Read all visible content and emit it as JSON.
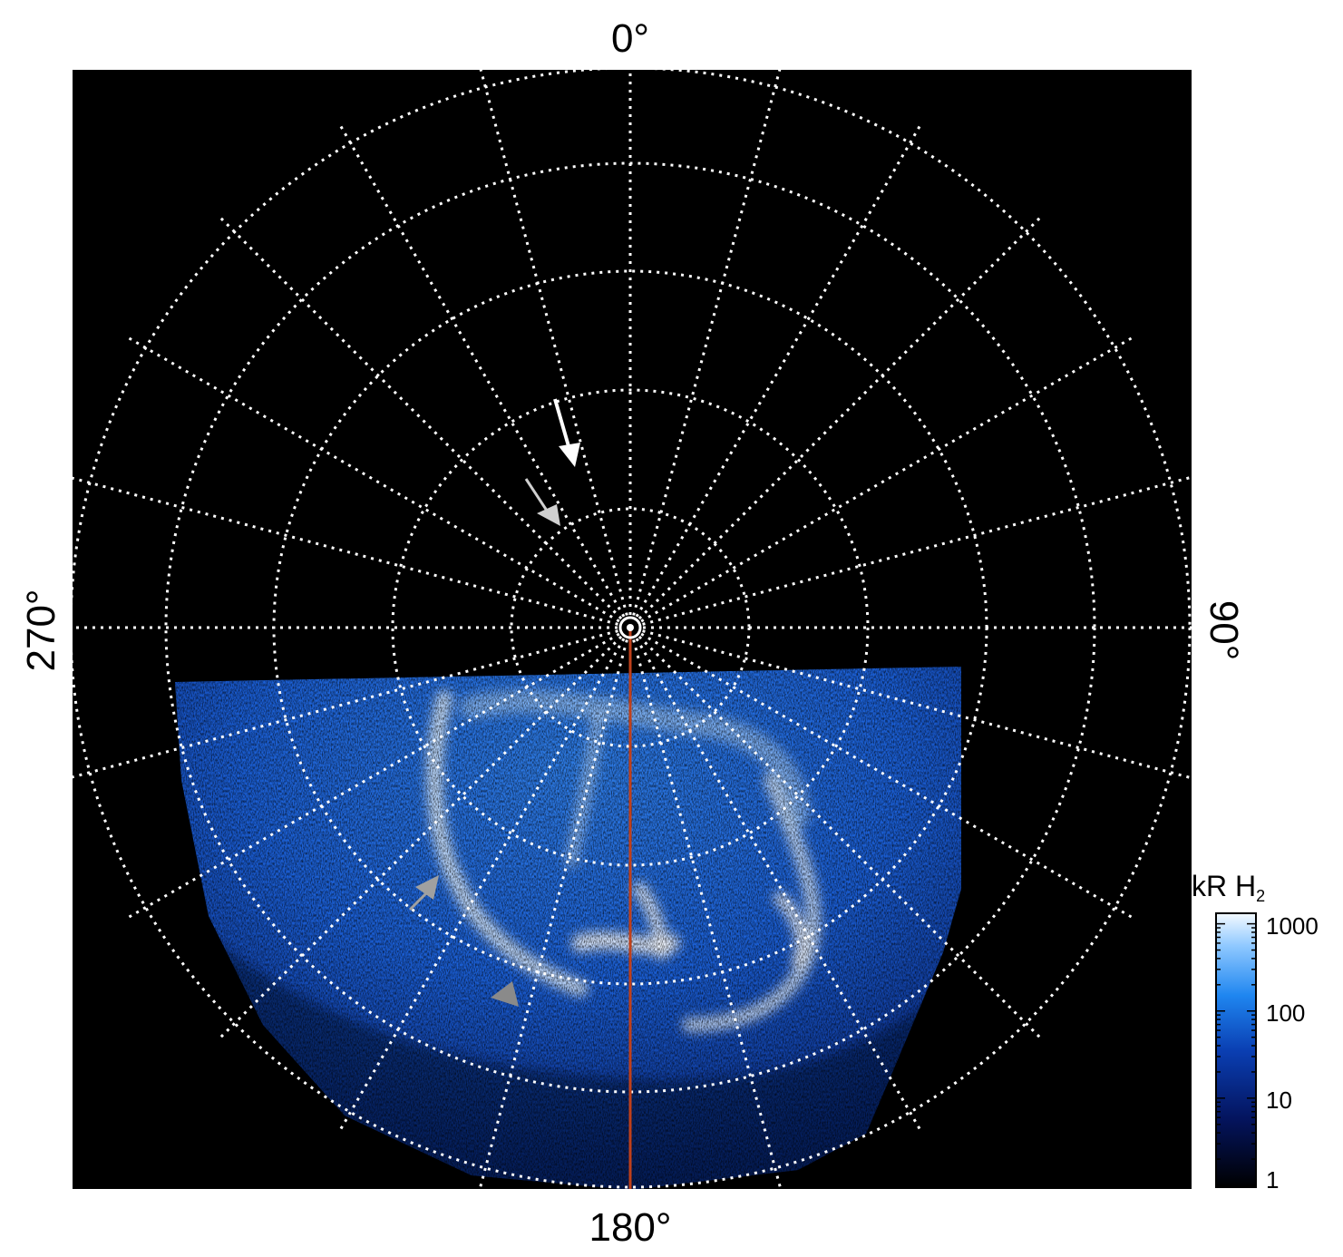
{
  "polar_labels": {
    "top": "0°",
    "bottom": "180°",
    "left": "270°",
    "right": "90°"
  },
  "colorbar": {
    "title_main": "kR H",
    "title_subscript": "2",
    "ticks": [
      "1000",
      "100",
      "10",
      "1"
    ]
  },
  "colors": {
    "background": "#000000",
    "grid": "#ffffff",
    "meridian_line": "#c0401a",
    "arrow_white": "#ffffff",
    "arrow_gray": "#c8c8c8",
    "arrow_dark_gray": "#8a8a8a"
  }
}
